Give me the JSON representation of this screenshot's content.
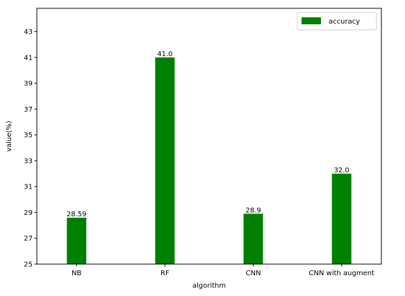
{
  "chart_data": {
    "type": "bar",
    "categories": [
      "NB",
      "RF",
      "CNN",
      "CNN with augment"
    ],
    "series": [
      {
        "name": "accuracy",
        "values": [
          28.59,
          41.0,
          28.9,
          32.0
        ],
        "color": "#008000"
      }
    ],
    "data_labels": [
      "28.59",
      "41.0",
      "28.9",
      "32.0"
    ],
    "xlabel": "algorithm",
    "ylabel": "value(%)",
    "ylim": [
      25,
      44.8
    ],
    "yticks": [
      25,
      27,
      29,
      31,
      33,
      35,
      37,
      39,
      41,
      43
    ],
    "grid": false,
    "legend_position": "top-right"
  }
}
